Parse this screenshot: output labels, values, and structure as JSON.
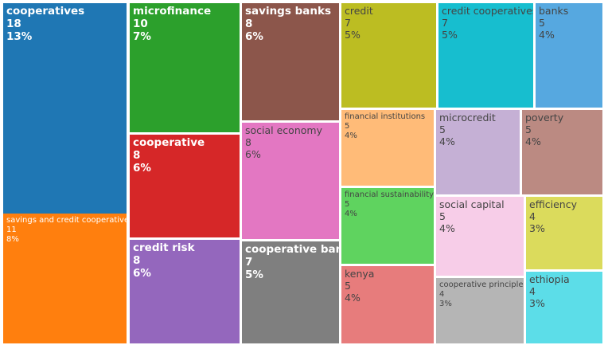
{
  "chart_data": {
    "type": "treemap",
    "value_unit": "occurrences",
    "items": [
      {
        "label": "cooperatives",
        "value": "18",
        "percent": "13%",
        "color": "#1f77b4",
        "text_color": "#ffffff",
        "bold": true
      },
      {
        "label": "savings and credit cooperatives",
        "value": "11",
        "percent": "8%",
        "color": "#ff7f0e",
        "text_color": "#ffffff",
        "bold": false
      },
      {
        "label": "microfinance",
        "value": "10",
        "percent": "7%",
        "color": "#2ca02c",
        "text_color": "#ffffff",
        "bold": true
      },
      {
        "label": "cooperative",
        "value": "8",
        "percent": "6%",
        "color": "#d62728",
        "text_color": "#ffffff",
        "bold": true
      },
      {
        "label": "credit risk",
        "value": "8",
        "percent": "6%",
        "color": "#9467bd",
        "text_color": "#ffffff",
        "bold": true
      },
      {
        "label": "savings banks",
        "value": "8",
        "percent": "6%",
        "color": "#8c564b",
        "text_color": "#ffffff",
        "bold": true
      },
      {
        "label": "social economy",
        "value": "8",
        "percent": "6%",
        "color": "#e377c2",
        "text_color": "#444444",
        "bold": false
      },
      {
        "label": "cooperative banks",
        "value": "7",
        "percent": "5%",
        "color": "#7f7f7f",
        "text_color": "#ffffff",
        "bold": true
      },
      {
        "label": "credit",
        "value": "7",
        "percent": "5%",
        "color": "#bcbd22",
        "text_color": "#444444",
        "bold": false
      },
      {
        "label": "financial institutions",
        "value": "5",
        "percent": "4%",
        "color": "#ffbb78",
        "text_color": "#444444",
        "bold": false
      },
      {
        "label": "financial sustainability",
        "value": "5",
        "percent": "4%",
        "color": "#5fd35f",
        "text_color": "#444444",
        "bold": false
      },
      {
        "label": "kenya",
        "value": "5",
        "percent": "4%",
        "color": "#e77c7c",
        "text_color": "#444444",
        "bold": false
      },
      {
        "label": "credit cooperatives",
        "value": "7",
        "percent": "5%",
        "color": "#17becf",
        "text_color": "#444444",
        "bold": false
      },
      {
        "label": "banks",
        "value": "5",
        "percent": "4%",
        "color": "#56a8e0",
        "text_color": "#444444",
        "bold": false
      },
      {
        "label": "microcredit",
        "value": "5",
        "percent": "4%",
        "color": "#c5b0d5",
        "text_color": "#444444",
        "bold": false
      },
      {
        "label": "poverty",
        "value": "5",
        "percent": "4%",
        "color": "#bb8a82",
        "text_color": "#444444",
        "bold": false
      },
      {
        "label": "social capital",
        "value": "5",
        "percent": "4%",
        "color": "#f7cde8",
        "text_color": "#444444",
        "bold": false
      },
      {
        "label": "efficiency",
        "value": "4",
        "percent": "3%",
        "color": "#dbdb5c",
        "text_color": "#444444",
        "bold": false
      },
      {
        "label": "cooperative principles",
        "value": "4",
        "percent": "3%",
        "color": "#b5b5b5",
        "text_color": "#444444",
        "bold": false
      },
      {
        "label": "ethiopia",
        "value": "4",
        "percent": "3%",
        "color": "#5cdde8",
        "text_color": "#444444",
        "bold": false
      }
    ]
  }
}
